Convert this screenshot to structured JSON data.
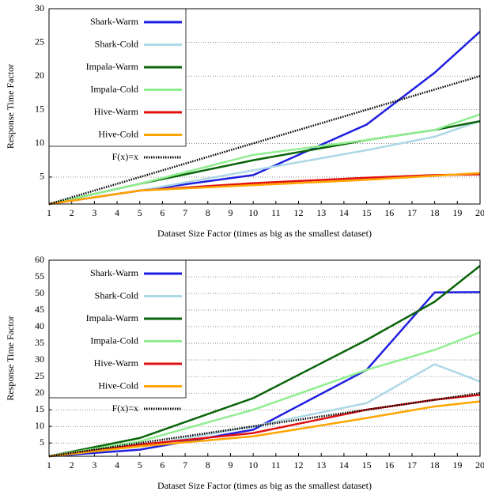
{
  "chart_data": [
    {
      "type": "line",
      "xlabel": "Dataset Size Factor (times as big as the smallest dataset)",
      "ylabel": "Response Time Factor",
      "x": [
        1,
        5,
        10,
        15,
        18,
        20
      ],
      "xlim": [
        1,
        20
      ],
      "xticks": [
        1,
        2,
        3,
        4,
        5,
        6,
        7,
        8,
        9,
        10,
        11,
        12,
        13,
        14,
        15,
        16,
        17,
        18,
        19,
        20
      ],
      "ylim": [
        1,
        30
      ],
      "yticks": [
        5,
        10,
        15,
        20,
        25,
        30
      ],
      "grid": true,
      "legend": "upper left",
      "series": [
        {
          "name": "Shark-Warm",
          "color": "#1f1fe0",
          "values": [
            1,
            3,
            5.3,
            12.8,
            20.5,
            26.6
          ]
        },
        {
          "name": "Shark-Cold",
          "color": "#add8e6",
          "values": [
            1,
            3,
            6,
            9,
            11,
            13.3
          ]
        },
        {
          "name": "Impala-Warm",
          "color": "#0a640a",
          "values": [
            1,
            4,
            7.5,
            10.5,
            12,
            13.3
          ]
        },
        {
          "name": "Impala-Cold",
          "color": "#90ee90",
          "values": [
            1,
            4,
            8.3,
            10.5,
            12,
            14.3
          ]
        },
        {
          "name": "Hive-Warm",
          "color": "#e01010",
          "values": [
            1,
            3,
            4.1,
            4.9,
            5.3,
            5.4
          ]
        },
        {
          "name": "Hive-Cold",
          "color": "#ffa500",
          "values": [
            1,
            3,
            3.8,
            4.6,
            5.2,
            5.6
          ]
        },
        {
          "name": "F(x)=x",
          "color": "#000000",
          "style": "dotted",
          "values": [
            1,
            5,
            10,
            15,
            18,
            20
          ]
        }
      ]
    },
    {
      "type": "line",
      "xlabel": "Dataset Size Factor (times as big as the smallest dataset)",
      "ylabel": "Response Time Factor",
      "x": [
        1,
        5,
        10,
        15,
        18,
        20
      ],
      "xlim": [
        1,
        20
      ],
      "xticks": [
        1,
        2,
        3,
        4,
        5,
        6,
        7,
        8,
        9,
        10,
        11,
        12,
        13,
        14,
        15,
        16,
        17,
        18,
        19,
        20
      ],
      "ylim": [
        1,
        60
      ],
      "yticks": [
        5,
        10,
        15,
        20,
        25,
        30,
        35,
        40,
        45,
        50,
        55,
        60
      ],
      "grid": true,
      "legend": "upper left",
      "series": [
        {
          "name": "Shark-Warm",
          "color": "#1f1fe0",
          "values": [
            1,
            3,
            9,
            27,
            50.3,
            50.4
          ]
        },
        {
          "name": "Shark-Cold",
          "color": "#add8e6",
          "values": [
            1,
            4,
            10,
            17,
            28.7,
            23.5
          ]
        },
        {
          "name": "Impala-Warm",
          "color": "#0a640a",
          "values": [
            1,
            6.5,
            18.5,
            36,
            47.5,
            58.3
          ]
        },
        {
          "name": "Impala-Cold",
          "color": "#90ee90",
          "values": [
            1,
            5.5,
            15,
            27,
            33,
            38.3
          ]
        },
        {
          "name": "Hive-Warm",
          "color": "#e01010",
          "values": [
            1,
            4.5,
            8,
            15,
            18,
            19.5
          ]
        },
        {
          "name": "Hive-Cold",
          "color": "#ffa500",
          "values": [
            1,
            4,
            7,
            12.5,
            16,
            17.5
          ]
        },
        {
          "name": "F(x)=x",
          "color": "#000000",
          "style": "dotted",
          "values": [
            1,
            5,
            10,
            15,
            18,
            20
          ]
        }
      ]
    }
  ]
}
